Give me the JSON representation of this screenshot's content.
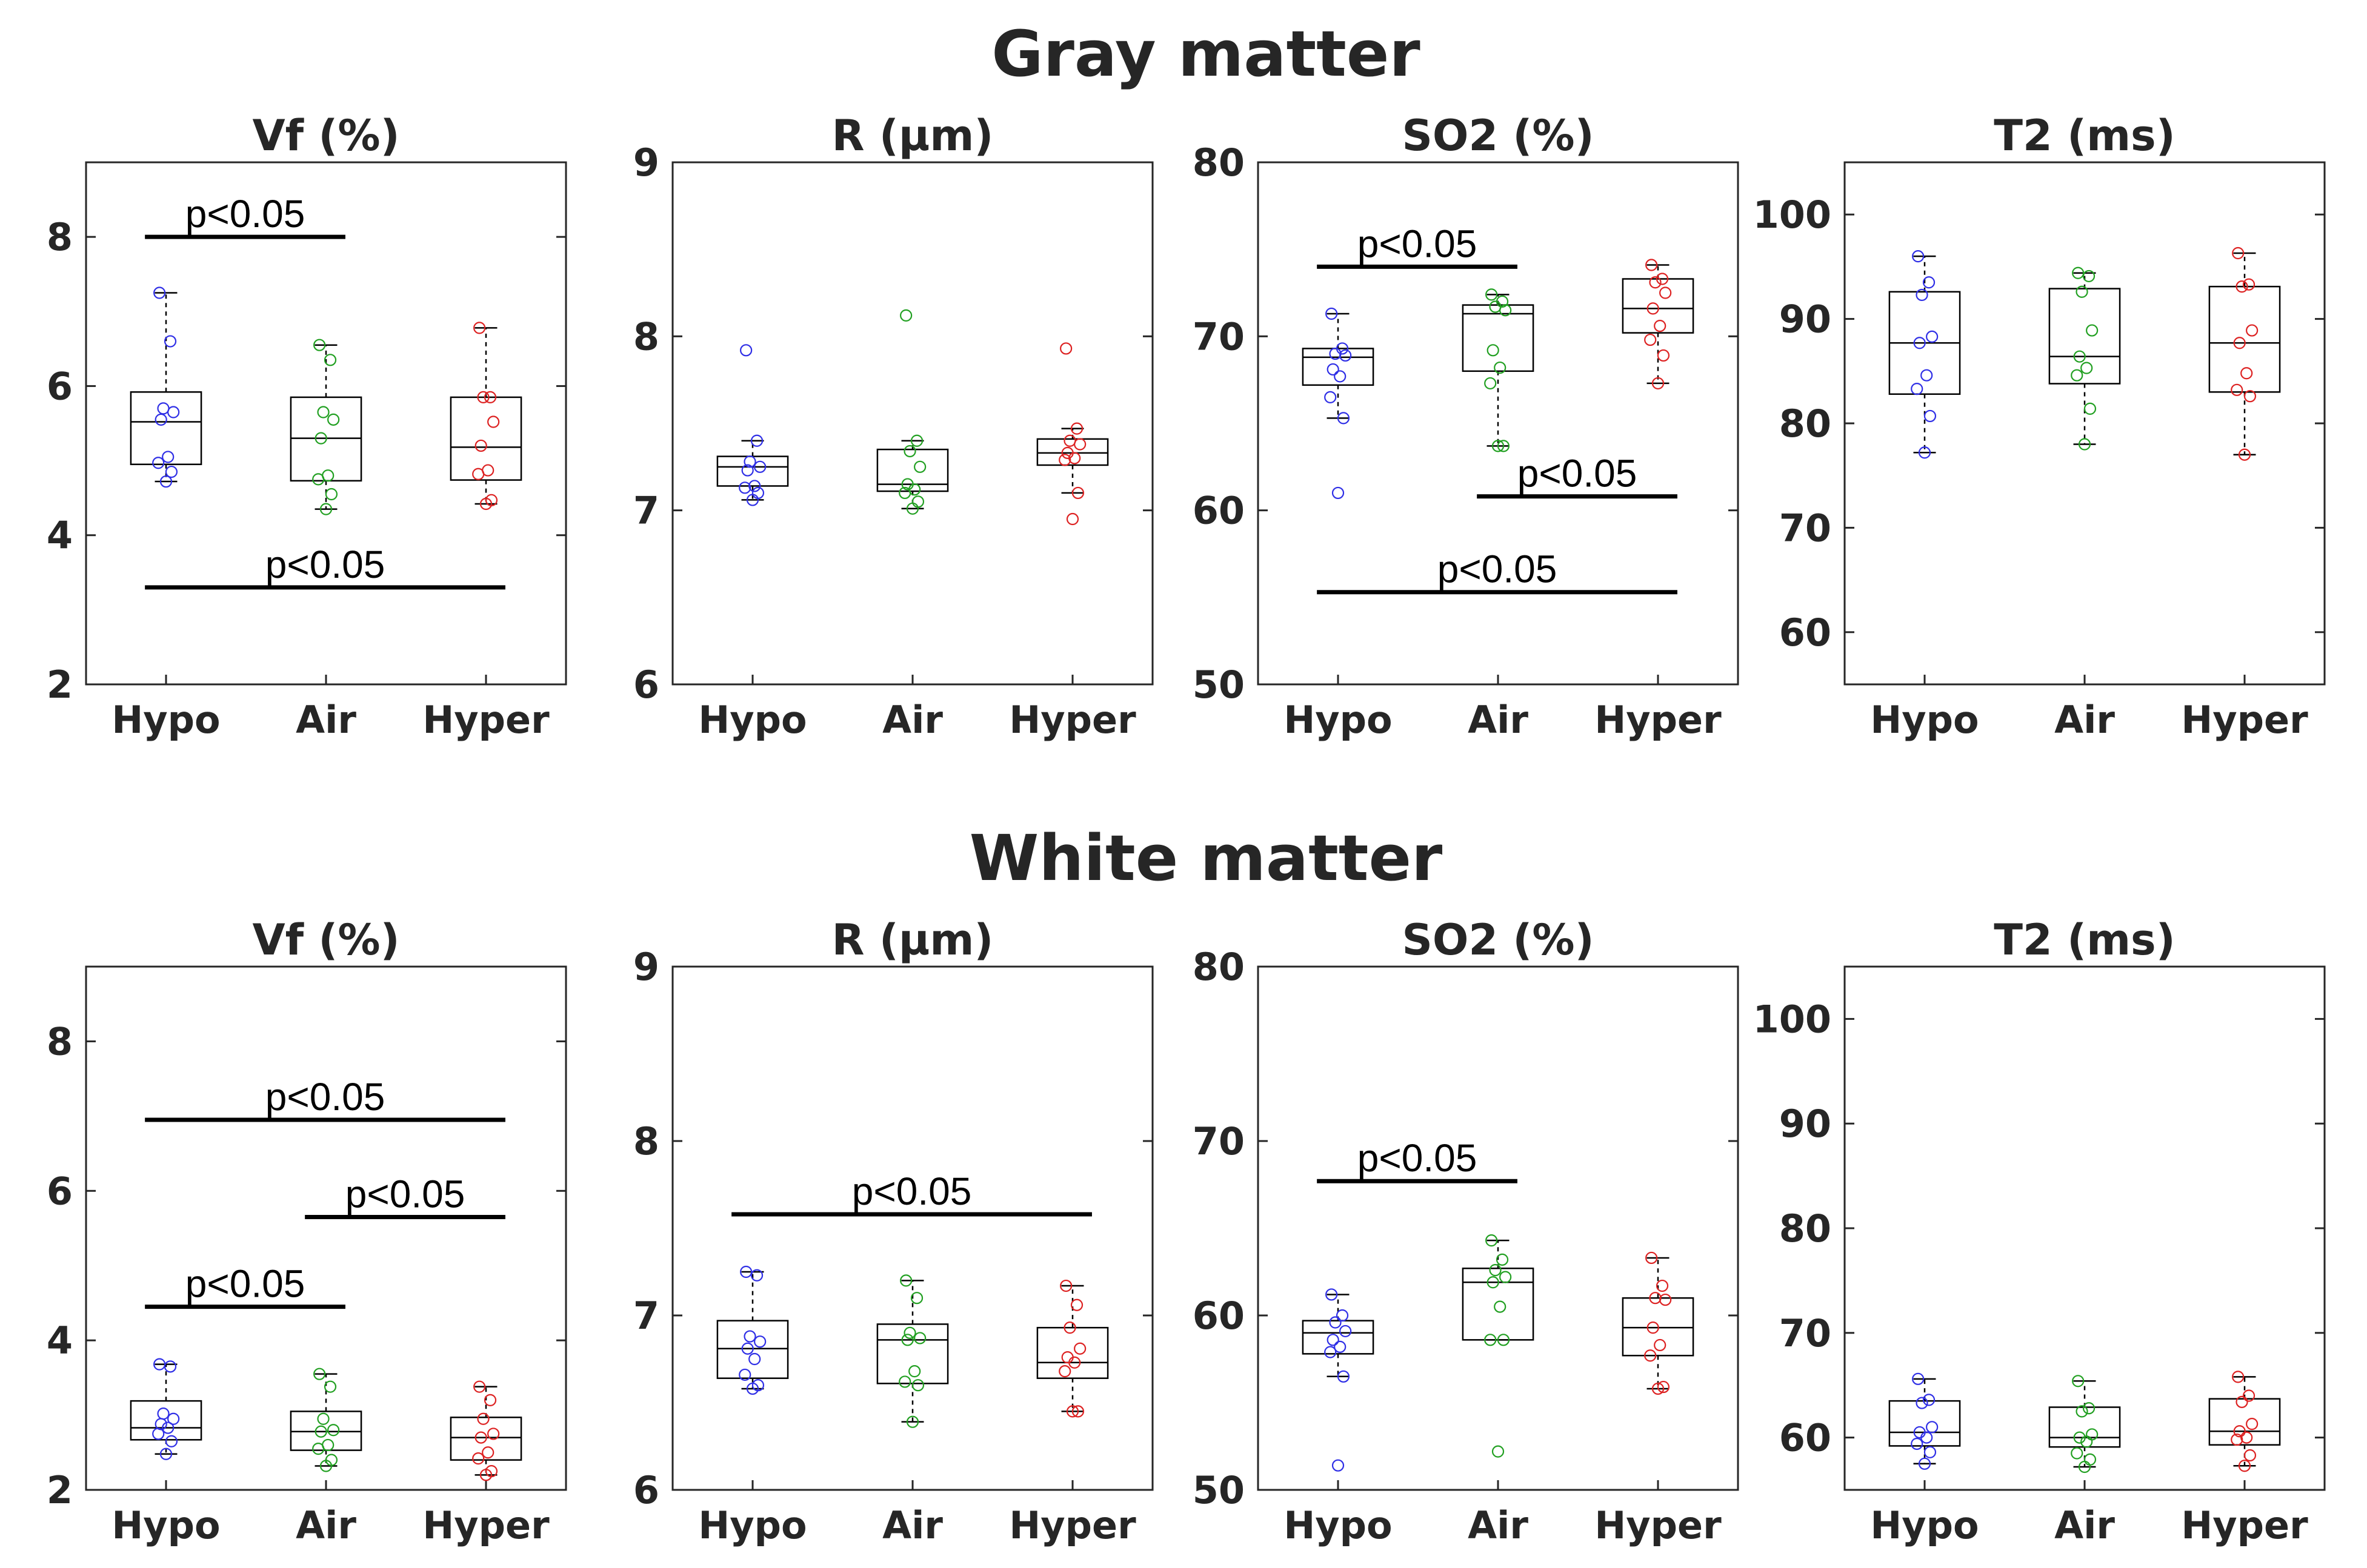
{
  "figure": {
    "sections": [
      "Gray matter",
      "White matter"
    ]
  },
  "colors": {
    "Hypo": "#2f2fe6",
    "Air": "#22a022",
    "Hyper": "#dd2222",
    "box": "#000000",
    "text": "#262626"
  },
  "chart_data": [
    {
      "type": "box",
      "section": "Gray matter",
      "title": "Vf (%)",
      "categories": [
        "Hypo",
        "Air",
        "Hyper"
      ],
      "ylim": [
        2,
        9
      ],
      "yticks": [
        2,
        4,
        6,
        8
      ],
      "boxes": [
        {
          "min": 4.72,
          "q1": 4.95,
          "median": 5.52,
          "q3": 5.92,
          "max": 7.25
        },
        {
          "min": 4.35,
          "q1": 4.73,
          "median": 5.3,
          "q3": 5.85,
          "max": 6.55
        },
        {
          "min": 4.42,
          "q1": 4.74,
          "median": 5.18,
          "q3": 5.85,
          "max": 6.78
        }
      ],
      "points": [
        [
          7.25,
          6.6,
          5.7,
          5.65,
          5.55,
          5.05,
          4.97,
          4.85,
          4.72
        ],
        [
          6.55,
          6.35,
          5.65,
          5.55,
          5.3,
          4.8,
          4.75,
          4.55,
          4.35
        ],
        [
          6.78,
          5.85,
          5.85,
          5.52,
          5.2,
          4.87,
          4.82,
          4.47,
          4.42
        ]
      ],
      "significance": [
        {
          "from": "Hypo",
          "to": "Air",
          "y": 8.0,
          "label": "p<0.05"
        },
        {
          "from": "Hypo",
          "to": "Hyper",
          "y": 3.3,
          "label": "p<0.05"
        }
      ]
    },
    {
      "type": "box",
      "section": "Gray matter",
      "title": "R (µm)",
      "categories": [
        "Hypo",
        "Air",
        "Hyper"
      ],
      "ylim": [
        6,
        9
      ],
      "yticks": [
        6,
        7,
        8,
        9
      ],
      "boxes": [
        {
          "min": 7.06,
          "q1": 7.14,
          "median": 7.25,
          "q3": 7.31,
          "max": 7.4
        },
        {
          "min": 7.01,
          "q1": 7.11,
          "median": 7.15,
          "q3": 7.35,
          "max": 7.4
        },
        {
          "min": 7.1,
          "q1": 7.26,
          "median": 7.33,
          "q3": 7.41,
          "max": 7.47
        }
      ],
      "points": [
        [
          7.92,
          7.4,
          7.28,
          7.25,
          7.23,
          7.14,
          7.13,
          7.1,
          7.06
        ],
        [
          8.12,
          7.4,
          7.34,
          7.25,
          7.15,
          7.12,
          7.1,
          7.05,
          7.01
        ],
        [
          7.93,
          7.47,
          7.4,
          7.38,
          7.33,
          7.3,
          7.29,
          7.1,
          6.95
        ]
      ],
      "significance": []
    },
    {
      "type": "box",
      "section": "Gray matter",
      "title": "SO2 (%)",
      "categories": [
        "Hypo",
        "Air",
        "Hyper"
      ],
      "ylim": [
        50,
        80
      ],
      "yticks": [
        50,
        60,
        70,
        80
      ],
      "boxes": [
        {
          "min": 65.3,
          "q1": 67.2,
          "median": 68.8,
          "q3": 69.3,
          "max": 71.3
        },
        {
          "min": 63.7,
          "q1": 68.0,
          "median": 71.3,
          "q3": 71.8,
          "max": 72.4
        },
        {
          "min": 67.3,
          "q1": 70.2,
          "median": 71.6,
          "q3": 73.3,
          "max": 74.1
        }
      ],
      "points": [
        [
          71.3,
          69.3,
          69.0,
          68.9,
          68.1,
          67.7,
          66.5,
          65.3,
          61.0
        ],
        [
          72.4,
          72.0,
          71.7,
          71.5,
          69.2,
          68.2,
          67.3,
          63.7,
          63.7
        ],
        [
          74.1,
          73.3,
          73.1,
          72.5,
          71.6,
          70.6,
          69.8,
          68.9,
          67.3
        ]
      ],
      "significance": [
        {
          "from": "Hypo",
          "to": "Air",
          "y": 74.0,
          "label": "p<0.05"
        },
        {
          "from": "Air",
          "to": "Hyper",
          "y": 60.8,
          "label": "p<0.05"
        },
        {
          "from": "Hypo",
          "to": "Hyper",
          "y": 55.3,
          "label": "p<0.05"
        }
      ]
    },
    {
      "type": "box",
      "section": "Gray matter",
      "title": "T2 (ms)",
      "categories": [
        "Hypo",
        "Air",
        "Hyper"
      ],
      "ylim": [
        55,
        105
      ],
      "yticks": [
        60,
        70,
        80,
        90,
        100
      ],
      "boxes": [
        {
          "min": 77.2,
          "q1": 82.8,
          "median": 87.7,
          "q3": 92.6,
          "max": 96.0
        },
        {
          "min": 78.0,
          "q1": 83.8,
          "median": 86.4,
          "q3": 92.9,
          "max": 94.4
        },
        {
          "min": 77.0,
          "q1": 83.0,
          "median": 87.7,
          "q3": 93.1,
          "max": 96.3
        }
      ],
      "points": [
        [
          96.0,
          93.5,
          92.3,
          88.3,
          87.7,
          84.6,
          83.3,
          80.7,
          77.2
        ],
        [
          94.4,
          94.1,
          92.6,
          88.9,
          86.4,
          85.3,
          84.6,
          81.4,
          78.0
        ],
        [
          96.3,
          93.3,
          93.1,
          88.9,
          87.7,
          84.8,
          83.2,
          82.6,
          77.0
        ]
      ],
      "significance": []
    },
    {
      "type": "box",
      "section": "White matter",
      "title": "Vf (%)",
      "categories": [
        "Hypo",
        "Air",
        "Hyper"
      ],
      "ylim": [
        2,
        9
      ],
      "yticks": [
        2,
        4,
        6,
        8
      ],
      "boxes": [
        {
          "min": 2.48,
          "q1": 2.67,
          "median": 2.83,
          "q3": 3.19,
          "max": 3.68
        },
        {
          "min": 2.32,
          "q1": 2.53,
          "median": 2.78,
          "q3": 3.05,
          "max": 3.55
        },
        {
          "min": 2.2,
          "q1": 2.4,
          "median": 2.7,
          "q3": 2.97,
          "max": 3.38
        }
      ],
      "points": [
        [
          3.68,
          3.65,
          3.02,
          2.95,
          2.88,
          2.83,
          2.75,
          2.65,
          2.48
        ],
        [
          3.55,
          3.38,
          2.95,
          2.8,
          2.78,
          2.6,
          2.55,
          2.4,
          2.32
        ],
        [
          3.38,
          3.2,
          2.95,
          2.75,
          2.7,
          2.5,
          2.42,
          2.25,
          2.2
        ]
      ],
      "significance": [
        {
          "from": "Hypo",
          "to": "Hyper",
          "y": 6.95,
          "label": "p<0.05"
        },
        {
          "from": "Air",
          "to": "Hyper",
          "y": 5.65,
          "label": "p<0.05"
        },
        {
          "from": "Hypo",
          "to": "Air",
          "y": 4.45,
          "label": "p<0.05"
        }
      ]
    },
    {
      "type": "box",
      "section": "White matter",
      "title": "R (µm)",
      "categories": [
        "Hypo",
        "Air",
        "Hyper"
      ],
      "ylim": [
        6,
        9
      ],
      "yticks": [
        6,
        7,
        8,
        9
      ],
      "boxes": [
        {
          "min": 6.58,
          "q1": 6.64,
          "median": 6.81,
          "q3": 6.97,
          "max": 7.25
        },
        {
          "min": 6.39,
          "q1": 6.61,
          "median": 6.86,
          "q3": 6.95,
          "max": 7.2
        },
        {
          "min": 6.45,
          "q1": 6.64,
          "median": 6.73,
          "q3": 6.93,
          "max": 7.17
        }
      ],
      "points": [
        [
          7.25,
          7.23,
          6.88,
          6.85,
          6.81,
          6.75,
          6.66,
          6.6,
          6.58
        ],
        [
          7.2,
          7.1,
          6.9,
          6.87,
          6.86,
          6.68,
          6.62,
          6.6,
          6.39
        ],
        [
          7.17,
          7.06,
          6.93,
          6.81,
          6.76,
          6.73,
          6.68,
          6.45,
          6.45
        ]
      ],
      "significance": [
        {
          "from": "Hypo",
          "to": "Hyper",
          "y": 7.58,
          "label": "p<0.05"
        }
      ]
    },
    {
      "type": "box",
      "section": "White matter",
      "title": "SO2 (%)",
      "categories": [
        "Hypo",
        "Air",
        "Hyper"
      ],
      "ylim": [
        50,
        80
      ],
      "yticks": [
        50,
        60,
        70,
        80
      ],
      "boxes": [
        {
          "min": 56.5,
          "q1": 57.8,
          "median": 59.0,
          "q3": 59.7,
          "max": 61.2
        },
        {
          "min": 58.6,
          "q1": 58.6,
          "median": 61.9,
          "q3": 62.7,
          "max": 64.3
        },
        {
          "min": 55.8,
          "q1": 57.7,
          "median": 59.3,
          "q3": 61.0,
          "max": 63.3
        }
      ],
      "points": [
        [
          61.2,
          60.0,
          59.6,
          59.1,
          58.6,
          58.2,
          57.9,
          56.5,
          51.4
        ],
        [
          64.3,
          63.2,
          62.6,
          62.2,
          61.9,
          60.5,
          58.6,
          58.6,
          52.2
        ],
        [
          63.3,
          61.7,
          61.0,
          60.9,
          59.3,
          58.3,
          57.7,
          55.9,
          55.8
        ]
      ],
      "significance": [
        {
          "from": "Hypo",
          "to": "Air",
          "y": 67.7,
          "label": "p<0.05"
        }
      ]
    },
    {
      "type": "box",
      "section": "White matter",
      "title": "T2 (ms)",
      "categories": [
        "Hypo",
        "Air",
        "Hyper"
      ],
      "ylim": [
        55,
        105
      ],
      "yticks": [
        60,
        70,
        80,
        90,
        100
      ],
      "boxes": [
        {
          "min": 57.5,
          "q1": 59.2,
          "median": 60.5,
          "q3": 63.5,
          "max": 65.6
        },
        {
          "min": 57.2,
          "q1": 59.1,
          "median": 60.0,
          "q3": 62.9,
          "max": 65.4
        },
        {
          "min": 57.3,
          "q1": 59.3,
          "median": 60.6,
          "q3": 63.7,
          "max": 65.8
        }
      ],
      "points": [
        [
          65.6,
          63.6,
          63.3,
          61.0,
          60.5,
          60.0,
          59.4,
          58.6,
          57.5
        ],
        [
          65.4,
          62.8,
          62.5,
          60.3,
          60.0,
          59.6,
          58.5,
          57.9,
          57.2
        ],
        [
          65.8,
          64.0,
          63.4,
          61.3,
          60.6,
          60.0,
          59.8,
          58.3,
          57.3
        ]
      ],
      "significance": []
    }
  ]
}
